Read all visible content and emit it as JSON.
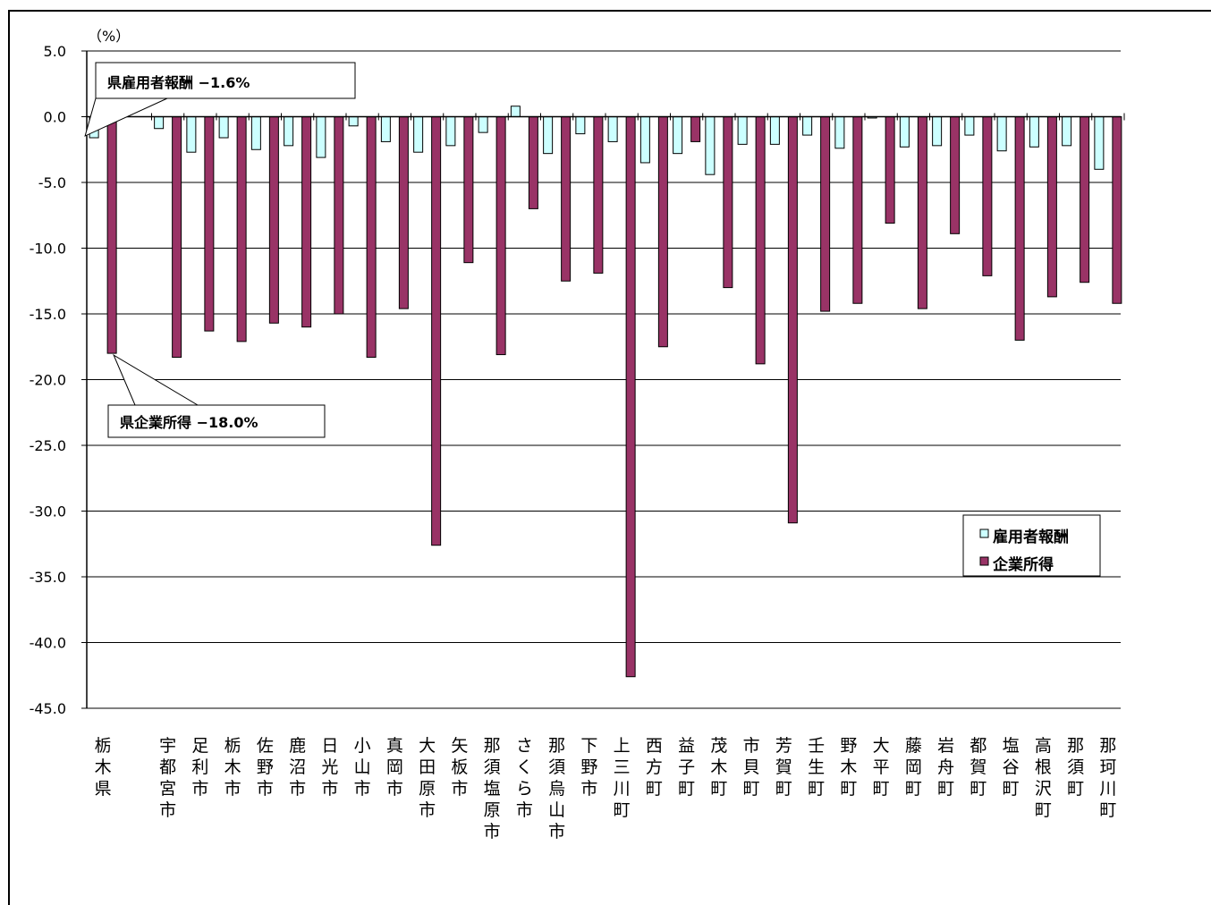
{
  "chart_data": {
    "type": "bar",
    "unit_label": "（%）",
    "ylim": [
      -45,
      5
    ],
    "y_ticks": [
      "5.0",
      "0.0",
      "-5.0",
      "-10.0",
      "-15.0",
      "-20.0",
      "-25.0",
      "-30.0",
      "-35.0",
      "-40.0",
      "-45.0"
    ],
    "categories": [
      "栃木県",
      "",
      "宇都宮市",
      "足利市",
      "栃木市",
      "佐野市",
      "鹿沼市",
      "日光市",
      "小山市",
      "真岡市",
      "大田原市",
      "矢板市",
      "那須塩原市",
      "さくら市",
      "那須烏山市",
      "下野市",
      "上三川町",
      "西方町",
      "益子町",
      "茂木町",
      "市貝町",
      "芳賀町",
      "壬生町",
      "野木町",
      "大平町",
      "藤岡町",
      "岩舟町",
      "都賀町",
      "塩谷町",
      "高根沢町",
      "那須町",
      "那珂川町"
    ],
    "series": [
      {
        "name": "雇用者報酬",
        "color": "#CCFFFF",
        "values": [
          -1.6,
          null,
          -0.9,
          -2.7,
          -1.6,
          -2.5,
          -2.2,
          -3.1,
          -0.7,
          -1.9,
          -2.7,
          -2.2,
          -1.2,
          0.8,
          -2.8,
          -1.3,
          -1.9,
          -3.5,
          -2.8,
          -4.4,
          -2.1,
          -2.1,
          -1.4,
          -2.4,
          -0.1,
          -2.3,
          -2.2,
          -1.4,
          -2.6,
          -2.3,
          -2.2,
          -4.0
        ]
      },
      {
        "name": "企業所得",
        "color": "#993366",
        "values": [
          -18.0,
          null,
          -18.3,
          -16.3,
          -17.1,
          -15.7,
          -16.0,
          -15.0,
          -18.3,
          -14.6,
          -32.6,
          -11.1,
          -18.1,
          -7.0,
          -12.5,
          -11.9,
          -42.6,
          -17.5,
          -1.9,
          -13.0,
          -18.8,
          -30.9,
          -14.8,
          -14.2,
          -8.1,
          -14.6,
          -8.9,
          -12.1,
          -17.0,
          -13.7,
          -12.6,
          -14.2
        ]
      }
    ],
    "annotations": [
      {
        "text": "県雇用者報酬 −1.6%",
        "category_index": 0,
        "series": 0
      },
      {
        "text": "県企業所得 −18.0%",
        "category_index": 0,
        "series": 1
      }
    ],
    "legend_position": "bottom-right",
    "grid": true
  }
}
